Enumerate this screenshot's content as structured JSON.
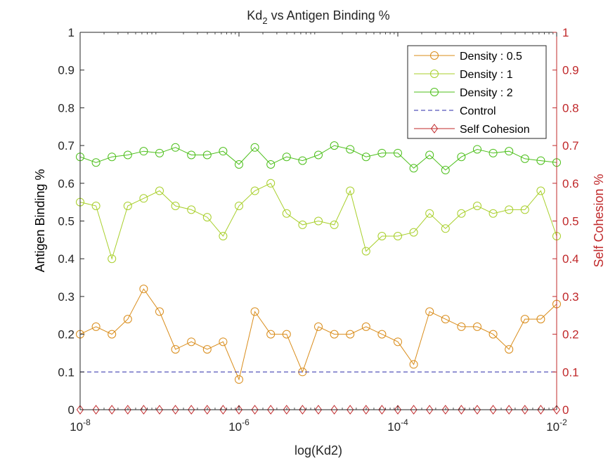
{
  "chart_data": {
    "type": "line",
    "title_main": "Kd",
    "title_sub": "2",
    "title_rest": " vs Antigen Binding %",
    "xlabel": "log(Kd2)",
    "ylabel_left": "Antigen Binding %",
    "ylabel_right": "Self Cohesion %",
    "x_scale": "log",
    "xlim": [
      1e-08,
      0.01
    ],
    "ylim": [
      0,
      1
    ],
    "x_ticks": [
      {
        "value": 1e-08,
        "base": "10",
        "exp": "-8"
      },
      {
        "value": 1e-06,
        "base": "10",
        "exp": "-6"
      },
      {
        "value": 0.0001,
        "base": "10",
        "exp": "-4"
      },
      {
        "value": 0.01,
        "base": "10",
        "exp": "-2"
      }
    ],
    "y_ticks": [
      {
        "value": 0,
        "label": "0"
      },
      {
        "value": 0.1,
        "label": "0.1"
      },
      {
        "value": 0.2,
        "label": "0.2"
      },
      {
        "value": 0.3,
        "label": "0.3"
      },
      {
        "value": 0.4,
        "label": "0.4"
      },
      {
        "value": 0.5,
        "label": "0.5"
      },
      {
        "value": 0.6,
        "label": "0.6"
      },
      {
        "value": 0.7,
        "label": "0.7"
      },
      {
        "value": 0.8,
        "label": "0.8"
      },
      {
        "value": 0.9,
        "label": "0.9"
      },
      {
        "value": 1,
        "label": "1"
      }
    ],
    "grid": false,
    "legend_position": "top-right",
    "log_x_exponents": [
      -8.0,
      -7.8,
      -7.6,
      -7.4,
      -7.2,
      -7.0,
      -6.8,
      -6.6,
      -6.4,
      -6.2,
      -6.0,
      -5.8,
      -5.6,
      -5.4,
      -5.2,
      -5.0,
      -4.8,
      -4.6,
      -4.4,
      -4.2,
      -4.0,
      -3.8,
      -3.6,
      -3.4,
      -3.2,
      -3.0,
      -2.8,
      -2.6,
      -2.4,
      -2.2,
      -2.0
    ],
    "series": [
      {
        "name": "Density : 0.5",
        "color": "#d98c1a",
        "marker": "circle",
        "values": [
          0.2,
          0.22,
          0.2,
          0.24,
          0.32,
          0.26,
          0.16,
          0.18,
          0.16,
          0.18,
          0.08,
          0.26,
          0.2,
          0.2,
          0.1,
          0.22,
          0.2,
          0.2,
          0.22,
          0.2,
          0.18,
          0.12,
          0.26,
          0.24,
          0.22,
          0.22,
          0.2,
          0.16,
          0.24,
          0.24,
          0.28
        ]
      },
      {
        "name": "Density : 1",
        "color": "#a8cf2a",
        "marker": "circle",
        "values": [
          0.55,
          0.54,
          0.4,
          0.54,
          0.56,
          0.58,
          0.54,
          0.53,
          0.51,
          0.46,
          0.54,
          0.58,
          0.6,
          0.52,
          0.49,
          0.5,
          0.49,
          0.58,
          0.42,
          0.46,
          0.46,
          0.47,
          0.52,
          0.48,
          0.52,
          0.54,
          0.52,
          0.53,
          0.53,
          0.58,
          0.46
        ]
      },
      {
        "name": "Density : 2",
        "color": "#4cbf1a",
        "marker": "circle",
        "values": [
          0.67,
          0.655,
          0.67,
          0.675,
          0.685,
          0.68,
          0.695,
          0.675,
          0.675,
          0.685,
          0.65,
          0.695,
          0.65,
          0.67,
          0.66,
          0.675,
          0.7,
          0.69,
          0.67,
          0.68,
          0.68,
          0.64,
          0.675,
          0.635,
          0.67,
          0.69,
          0.68,
          0.685,
          0.665,
          0.66,
          0.655
        ]
      },
      {
        "name": "Control",
        "color": "#2a2aa8",
        "marker": "none",
        "dashed": true,
        "values": [
          0.1,
          0.1
        ]
      },
      {
        "name": "Self Cohesion",
        "color": "#c0282a",
        "marker": "diamond",
        "values": [
          0,
          0,
          0,
          0,
          0,
          0,
          0,
          0,
          0,
          0,
          0,
          0,
          0,
          0,
          0,
          0,
          0,
          0,
          0,
          0,
          0,
          0,
          0,
          0,
          0,
          0,
          0,
          0,
          0,
          0,
          0
        ]
      }
    ],
    "right_axis_color": "#c0282a"
  }
}
